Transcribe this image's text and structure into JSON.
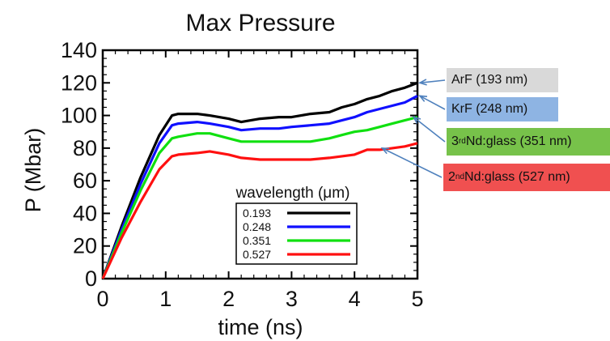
{
  "chart_data": {
    "type": "line",
    "title": "Max Pressure",
    "xlabel": "time (ns)",
    "ylabel": "P (Mbar)",
    "xlim": [
      0,
      5
    ],
    "ylim": [
      0,
      140
    ],
    "x_ticks": [
      "0",
      "1",
      "2",
      "3",
      "4",
      "5"
    ],
    "y_ticks": [
      "0",
      "20",
      "40",
      "60",
      "80",
      "100",
      "120",
      "140"
    ],
    "grid": false,
    "legend": {
      "title": "wavelength (μm)",
      "placement": "lower-center",
      "entries": [
        "0.193",
        "0.248",
        "0.351",
        "0.527"
      ]
    },
    "series": [
      {
        "name": "0.193",
        "color": "#000000",
        "x": [
          0,
          0.3,
          0.6,
          0.9,
          1.1,
          1.2,
          1.5,
          1.7,
          2.0,
          2.2,
          2.5,
          2.8,
          3.0,
          3.3,
          3.6,
          3.8,
          4.0,
          4.2,
          4.4,
          4.6,
          4.8,
          5.0
        ],
        "y": [
          0,
          32,
          62,
          88,
          100,
          101,
          101,
          100,
          98,
          96,
          98,
          99,
          99,
          101,
          102,
          105,
          107,
          110,
          112,
          115,
          117,
          120
        ]
      },
      {
        "name": "0.248",
        "color": "#1010ff",
        "x": [
          0,
          0.3,
          0.6,
          0.9,
          1.1,
          1.2,
          1.5,
          1.7,
          2.0,
          2.2,
          2.5,
          2.8,
          3.0,
          3.3,
          3.6,
          3.8,
          4.0,
          4.2,
          4.4,
          4.6,
          4.8,
          5.0
        ],
        "y": [
          0,
          30,
          58,
          83,
          94,
          95,
          96,
          95,
          93,
          91,
          92,
          92,
          93,
          94,
          95,
          97,
          99,
          102,
          104,
          106,
          108,
          112
        ]
      },
      {
        "name": "0.351",
        "color": "#10e010",
        "x": [
          0,
          0.3,
          0.6,
          0.9,
          1.1,
          1.2,
          1.5,
          1.7,
          2.0,
          2.2,
          2.5,
          2.8,
          3.0,
          3.3,
          3.6,
          3.8,
          4.0,
          4.2,
          4.4,
          4.6,
          4.8,
          5.0
        ],
        "y": [
          0,
          28,
          54,
          77,
          86,
          87,
          89,
          89,
          86,
          84,
          84,
          84,
          84,
          84,
          86,
          88,
          90,
          91,
          93,
          95,
          97,
          99
        ]
      },
      {
        "name": "0.527",
        "color": "#ff1010",
        "x": [
          0,
          0.3,
          0.6,
          0.9,
          1.1,
          1.2,
          1.5,
          1.7,
          2.0,
          2.2,
          2.5,
          2.8,
          3.0,
          3.3,
          3.6,
          3.8,
          4.0,
          4.2,
          4.4,
          4.6,
          4.8,
          5.0
        ],
        "y": [
          0,
          25,
          47,
          67,
          75,
          76,
          77,
          78,
          76,
          74,
          73,
          73,
          73,
          73,
          74,
          75,
          76,
          79,
          79,
          80,
          81,
          83
        ]
      }
    ],
    "annotations": [
      {
        "pre": "ArF (193 nm)",
        "sup": "",
        "post": "",
        "bg": "#d9d9d9",
        "target": [
          5.0,
          120
        ]
      },
      {
        "pre": "KrF (248 nm)",
        "sup": "",
        "post": "",
        "bg": "#8eb4e3",
        "target": [
          5.0,
          112
        ]
      },
      {
        "pre": "3",
        "sup": "rd",
        "post": " Nd:glass (351 nm)",
        "bg": "#77c24a",
        "target": [
          4.9,
          99
        ]
      },
      {
        "pre": "2",
        "sup": "nd",
        "post": " Nd:glass (527 nm)",
        "bg": "#f05050",
        "target": [
          4.4,
          80
        ]
      }
    ]
  }
}
